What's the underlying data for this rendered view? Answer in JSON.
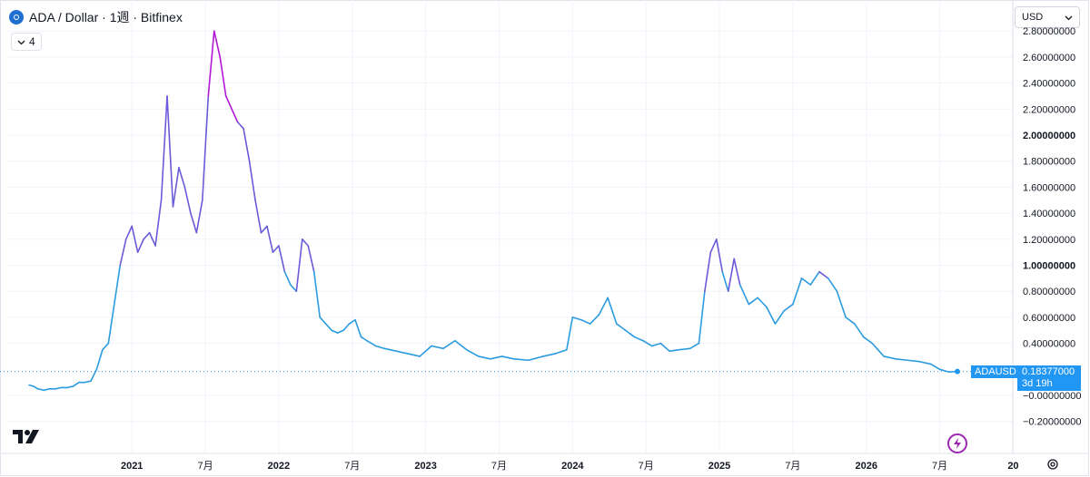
{
  "header": {
    "title": "ADA / Dollar · 1週 · Bitfinex",
    "indicator_count": "4"
  },
  "currency_select": {
    "value": "USD"
  },
  "price_tag": {
    "symbol": "ADAUSD",
    "price": "0.18377000",
    "countdown": "3d 19h"
  },
  "colors": {
    "line_low": "#2b9be0",
    "line_mid": "#6a5bd9",
    "line_high": "#b118d6",
    "accent": "#2196f3"
  },
  "chart_data": {
    "type": "line",
    "title": "ADA / Dollar · 1週 · Bitfinex",
    "series": [
      {
        "name": "ADAUSD",
        "x": [
          2020.3,
          2020.33,
          2020.36,
          2020.4,
          2020.44,
          2020.48,
          2020.52,
          2020.56,
          2020.6,
          2020.64,
          2020.68,
          2020.72,
          2020.76,
          2020.8,
          2020.84,
          2020.88,
          2020.92,
          2020.96,
          2021.0,
          2021.04,
          2021.08,
          2021.12,
          2021.16,
          2021.2,
          2021.24,
          2021.28,
          2021.32,
          2021.36,
          2021.4,
          2021.44,
          2021.48,
          2021.52,
          2021.56,
          2021.6,
          2021.64,
          2021.68,
          2021.72,
          2021.76,
          2021.8,
          2021.84,
          2021.88,
          2021.92,
          2021.96,
          2022.0,
          2022.04,
          2022.08,
          2022.12,
          2022.16,
          2022.2,
          2022.24,
          2022.28,
          2022.32,
          2022.36,
          2022.4,
          2022.44,
          2022.48,
          2022.52,
          2022.56,
          2022.6,
          2022.66,
          2022.72,
          2022.8,
          2022.88,
          2022.96,
          2023.04,
          2023.12,
          2023.2,
          2023.28,
          2023.36,
          2023.44,
          2023.52,
          2023.6,
          2023.7,
          2023.8,
          2023.88,
          2023.96,
          2024.0,
          2024.06,
          2024.12,
          2024.18,
          2024.24,
          2024.3,
          2024.36,
          2024.42,
          2024.48,
          2024.54,
          2024.6,
          2024.66,
          2024.72,
          2024.8,
          2024.86,
          2024.9,
          2024.94,
          2024.98,
          2025.02,
          2025.06,
          2025.1,
          2025.14,
          2025.2,
          2025.26,
          2025.32,
          2025.38,
          2025.44,
          2025.5,
          2025.56,
          2025.62,
          2025.68,
          2025.74,
          2025.8,
          2025.86,
          2025.92,
          2025.98,
          2026.04,
          2026.12,
          2026.2,
          2026.28,
          2026.36,
          2026.44,
          2026.5,
          2026.56,
          2026.62
        ],
        "values": [
          0.08,
          0.07,
          0.05,
          0.04,
          0.05,
          0.05,
          0.06,
          0.06,
          0.07,
          0.1,
          0.1,
          0.11,
          0.2,
          0.35,
          0.4,
          0.7,
          1.0,
          1.2,
          1.3,
          1.1,
          1.2,
          1.25,
          1.15,
          1.5,
          2.3,
          1.45,
          1.75,
          1.6,
          1.4,
          1.25,
          1.5,
          2.3,
          2.8,
          2.6,
          2.3,
          2.2,
          2.1,
          2.05,
          1.8,
          1.5,
          1.25,
          1.3,
          1.1,
          1.15,
          0.95,
          0.85,
          0.8,
          1.2,
          1.15,
          0.95,
          0.6,
          0.55,
          0.5,
          0.48,
          0.5,
          0.55,
          0.58,
          0.45,
          0.42,
          0.38,
          0.36,
          0.34,
          0.32,
          0.3,
          0.38,
          0.36,
          0.42,
          0.35,
          0.3,
          0.28,
          0.3,
          0.28,
          0.27,
          0.3,
          0.32,
          0.35,
          0.6,
          0.58,
          0.55,
          0.62,
          0.75,
          0.55,
          0.5,
          0.45,
          0.42,
          0.38,
          0.4,
          0.34,
          0.35,
          0.36,
          0.4,
          0.8,
          1.1,
          1.2,
          0.95,
          0.8,
          1.05,
          0.85,
          0.7,
          0.75,
          0.68,
          0.55,
          0.65,
          0.7,
          0.9,
          0.85,
          0.95,
          0.9,
          0.8,
          0.6,
          0.55,
          0.45,
          0.4,
          0.3,
          0.28,
          0.27,
          0.26,
          0.24,
          0.2,
          0.18,
          0.18377
        ]
      }
    ],
    "y_ticks": [
      "2.80000000",
      "2.60000000",
      "2.40000000",
      "2.20000000",
      "2.00000000",
      "1.80000000",
      "1.60000000",
      "1.40000000",
      "1.20000000",
      "1.00000000",
      "0.80000000",
      "0.60000000",
      "0.40000000",
      "−0.00000000",
      "−0.20000000"
    ],
    "x_ticks": [
      "2021",
      "7月",
      "2022",
      "7月",
      "2023",
      "7月",
      "2024",
      "7月",
      "2025",
      "7月",
      "2026",
      "7月",
      "20"
    ],
    "ylim": [
      -0.2,
      2.95
    ],
    "grid": true,
    "legend": "none"
  }
}
